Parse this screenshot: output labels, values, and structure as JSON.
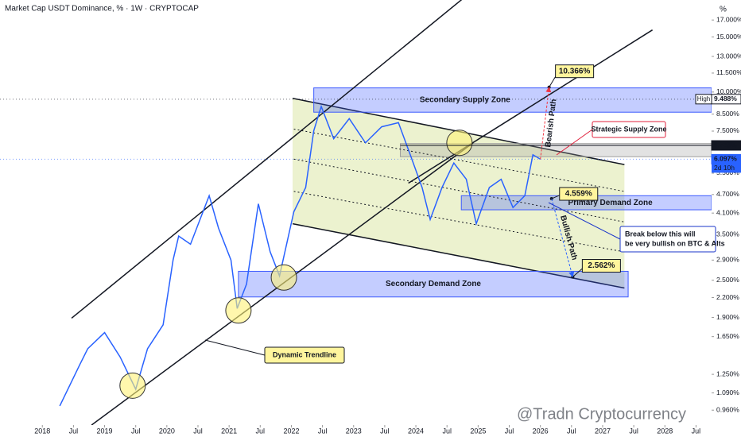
{
  "chart_data": {
    "type": "line",
    "title": "Market Cap USDT Dominance, % · 1W · CRYPTOCAP",
    "axis_unit": "%",
    "log_scale": true,
    "grid": false,
    "color": "#2962ff",
    "xlim": [
      2017.32,
      2028.75
    ],
    "xticks": [
      2018,
      {
        "value": 2018.5,
        "label": "Jul"
      },
      2019,
      {
        "value": 2019.5,
        "label": "Jul"
      },
      2020,
      {
        "value": 2020.5,
        "label": "Jul"
      },
      2021,
      {
        "value": 2021.5,
        "label": "Jul"
      },
      2022,
      {
        "value": 2022.5,
        "label": "Jul"
      },
      2023,
      {
        "value": 2023.5,
        "label": "Jul"
      },
      2024,
      {
        "value": 2024.5,
        "label": "Jul"
      },
      2025,
      {
        "value": 2025.5,
        "label": "Jul"
      },
      2026,
      {
        "value": 2026.5,
        "label": "Jul"
      },
      2027,
      {
        "value": 2027.5,
        "label": "Jul"
      },
      2028,
      {
        "value": 2028.5,
        "label": "Jul"
      }
    ],
    "ylim": [
      0.86,
      19.7
    ],
    "yticks": [
      {
        "value": 17,
        "label": "17.000%"
      },
      {
        "value": 15,
        "label": "15.000%"
      },
      {
        "value": 13,
        "label": "13.000%"
      },
      {
        "value": 11.5,
        "label": "11.500%"
      },
      {
        "value": 10,
        "label": "10.000%"
      },
      {
        "value": 8.5,
        "label": "8.500%"
      },
      {
        "value": 7.5,
        "label": "7.500%"
      },
      {
        "value": 5.5,
        "label": "5.500%"
      },
      {
        "value": 4.7,
        "label": "4.700%"
      },
      {
        "value": 4.1,
        "label": "4.100%"
      },
      {
        "value": 3.5,
        "label": "3.500%"
      },
      {
        "value": 2.9,
        "label": "2.900%"
      },
      {
        "value": 2.5,
        "label": "2.500%"
      },
      {
        "value": 2.2,
        "label": "2.200%"
      },
      {
        "value": 1.9,
        "label": "1.900%"
      },
      {
        "value": 1.65,
        "label": "1.650%"
      },
      {
        "value": 1.25,
        "label": "1.250%"
      },
      {
        "value": 1.09,
        "label": "1.090%"
      },
      {
        "value": 0.96,
        "label": "0.960%"
      }
    ],
    "x": [
      2018.28,
      2018.6,
      2018.73,
      2019.0,
      2019.25,
      2019.5,
      2019.69,
      2019.94,
      2020.1,
      2020.19,
      2020.38,
      2020.68,
      2020.83,
      2021.03,
      2021.13,
      2021.28,
      2021.47,
      2021.66,
      2021.81,
      2022.04,
      2022.23,
      2022.36,
      2022.48,
      2022.68,
      2022.93,
      2023.19,
      2023.45,
      2023.72,
      2023.91,
      2024.1,
      2024.23,
      2024.42,
      2024.61,
      2024.81,
      2024.97,
      2025.18,
      2025.37,
      2025.56,
      2025.75,
      2025.88,
      2026.0
    ],
    "values": [
      0.99,
      1.34,
      1.51,
      1.7,
      1.42,
      1.12,
      1.51,
      1.8,
      2.9,
      3.46,
      3.26,
      4.66,
      3.67,
      2.9,
      2.03,
      2.43,
      4.39,
      3.08,
      2.58,
      4.14,
      4.95,
      7.52,
      8.99,
      7.09,
      8.22,
      6.88,
      7.74,
      7.98,
      6.3,
      4.95,
      3.91,
      4.95,
      5.93,
      5.26,
      3.79,
      4.95,
      5.26,
      4.27,
      4.66,
      6.3,
      6.097
    ],
    "zones": [
      {
        "label": "Secondary Supply Zone",
        "low": 8.62,
        "high": 10.31,
        "x": [
          2022.36,
          2028.75
        ],
        "color": "#3d5afe",
        "text_color": "#e0203c"
      },
      {
        "low": 6.21,
        "high": 6.84,
        "x": [
          2023.75,
          2028.75
        ],
        "color": "#9e9e9e"
      },
      {
        "label": "Primary Demand Zone",
        "low": 4.2,
        "high": 4.66,
        "x": [
          2024.73,
          2028.75
        ],
        "color": "#3d5afe",
        "text_color": "#131722"
      },
      {
        "label": "Secondary Demand Zone",
        "low": 2.21,
        "high": 2.67,
        "x": [
          2021.15,
          2027.41
        ],
        "color": "#3d5afe",
        "text_color": "#131722"
      }
    ],
    "channel": {
      "x": [
        2022.02,
        2027.35
      ],
      "upper": [
        9.55,
        5.86
      ],
      "lower": [
        3.79,
        2.36
      ],
      "color": "#dce8a8"
    },
    "trendlines": [
      {
        "x": [
          2018.47,
          2024.86
        ],
        "values": [
          1.89,
          20.7
        ],
        "style": "solid"
      },
      {
        "x": [
          2018.79,
          2024.92
        ],
        "values": [
          0.86,
          6.88
        ],
        "style": "solid"
      },
      {
        "x": [
          2023.88,
          2027.8
        ],
        "values": [
          5.11,
          15.8
        ],
        "style": "solid"
      },
      {
        "x": [
          2022.04,
          2027.35
        ],
        "values": [
          7.61,
          4.81
        ],
        "style": "dotted"
      },
      {
        "x": [
          2022.04,
          2027.35
        ],
        "values": [
          6.1,
          3.84
        ],
        "style": "dotted"
      },
      {
        "x": [
          2022.04,
          2027.35
        ],
        "values": [
          4.81,
          3.08
        ],
        "style": "dotted"
      }
    ],
    "highlights": {
      "x": [
        2019.45,
        2021.15,
        2021.88,
        2024.7
      ],
      "values": [
        1.15,
        2.0,
        2.55,
        6.88
      ],
      "color": "#fff176"
    },
    "targets": [
      {
        "x": 2026.14,
        "value": 10.366,
        "label": "10.366%"
      },
      {
        "x": 2026.18,
        "value": 4.559,
        "label": "4.559%"
      },
      {
        "x": 2026.52,
        "value": 2.562,
        "label": "2.562%"
      }
    ],
    "paths": [
      {
        "label": "Bearish Path",
        "color": "#f23645"
      },
      {
        "label": "Bullish Path",
        "color": "#2962ff"
      }
    ],
    "notes": [
      {
        "lines": [
          "Strategic Supply Zone"
        ],
        "color": "#e0203c"
      },
      {
        "lines": [
          "Dynamic Trendline"
        ],
        "color": "#131722"
      },
      {
        "lines": [
          "Break below this will",
          "be very bullish on BTC & Alts"
        ],
        "color": "#1a35c9"
      }
    ],
    "price_tags": [
      {
        "value": 9.488,
        "label": "9.488%",
        "tag": "High",
        "style": "light"
      },
      {
        "value": 6.749,
        "label": "6.749%",
        "style": "dark"
      },
      {
        "value": 6.097,
        "label": "6.097%",
        "countdown": "2d 10h",
        "style": "blue"
      }
    ],
    "watermark": "@Tradn Cryptocurrency"
  }
}
